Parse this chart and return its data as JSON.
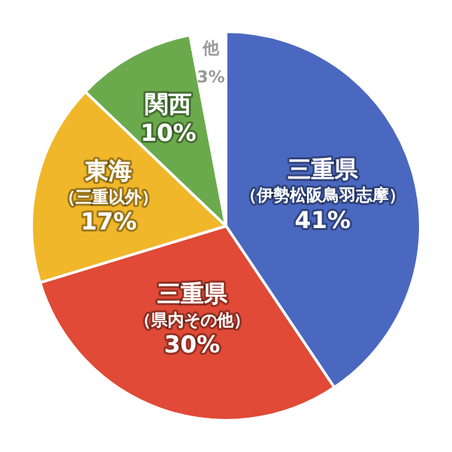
{
  "chart_data": {
    "type": "pie",
    "categories": [
      "三重県（伊勢松阪鳥羽志摩）",
      "三重県（県内その他）",
      "東海（三重以外）",
      "関西",
      "他"
    ],
    "values": [
      41,
      30,
      17,
      10,
      3
    ],
    "value_labels": [
      "41%",
      "30%",
      "17%",
      "10%",
      "3%"
    ],
    "colors": [
      "#4a68bf",
      "#e04a36",
      "#f0b72a",
      "#6aaa4c",
      "#ffffff"
    ],
    "legend": false
  }
}
